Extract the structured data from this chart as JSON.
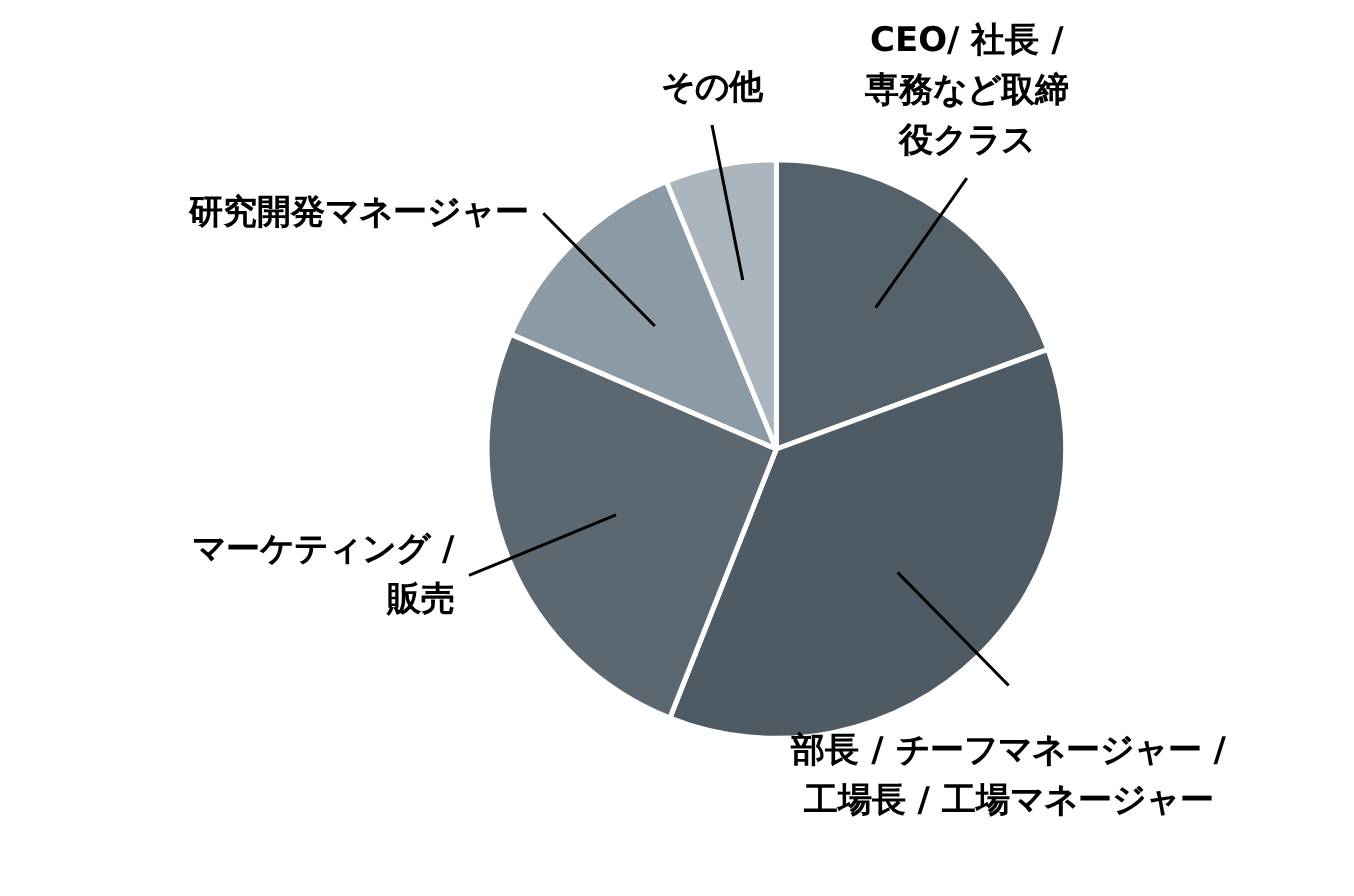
{
  "chart_data": {
    "type": "pie",
    "categories": [
      "CEO/ 社長 /\n専務など取締役クラス",
      "部長 / チーフマネージャー /\n工場長 / 工場マネージャー",
      "マーケティング /\n販売",
      "研究開発マネージャー",
      "その他"
    ],
    "values": [
      19.4,
      36.6,
      25.5,
      12.3,
      6.2
    ],
    "colors": [
      "#56626b",
      "#4f5b64",
      "#5c6871",
      "#8c9aa5",
      "#aab5bd"
    ]
  }
}
